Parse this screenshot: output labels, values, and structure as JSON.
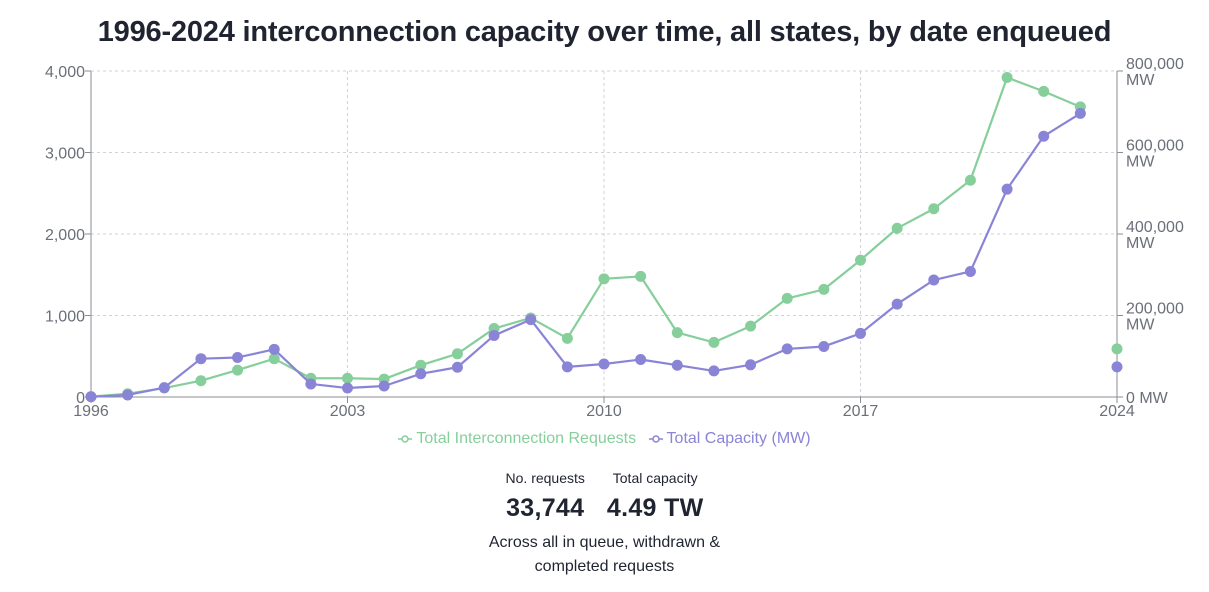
{
  "colors": {
    "requests": "#86cf9b",
    "capacity": "#8a84d6",
    "grid": "#cfd2d8",
    "axis": "#8a8d94",
    "text": "#1f2430"
  },
  "chart_data": {
    "type": "line",
    "title": "1996-2024 interconnection capacity over time, all states, by date enqueued",
    "x": [
      1996,
      1997,
      1998,
      1999,
      2000,
      2001,
      2002,
      2003,
      2004,
      2005,
      2006,
      2007,
      2008,
      2009,
      2010,
      2011,
      2012,
      2013,
      2014,
      2015,
      2016,
      2017,
      2018,
      2019,
      2020,
      2021,
      2022,
      2023,
      2024
    ],
    "xlim": [
      1996,
      2024
    ],
    "x_ticks": [
      "1996",
      "2003",
      "2010",
      "2017",
      "2024"
    ],
    "grid": true,
    "legend_position": "bottom-center",
    "series": [
      {
        "name": "Total Interconnection Requests",
        "axis": "left",
        "values": [
          5,
          40,
          110,
          200,
          330,
          470,
          230,
          230,
          220,
          390,
          530,
          840,
          970,
          720,
          1450,
          1480,
          790,
          670,
          870,
          1210,
          1320,
          1680,
          2070,
          2310,
          2660,
          3920,
          3750,
          3560,
          590
        ]
      },
      {
        "name": "Total Capacity (MW)",
        "axis": "right",
        "values": [
          500,
          5000,
          23000,
          94000,
          97000,
          117000,
          32000,
          22000,
          27000,
          57000,
          73000,
          151000,
          190000,
          74000,
          81000,
          92000,
          78000,
          64000,
          79000,
          118000,
          124000,
          156000,
          228000,
          287000,
          308000,
          510000,
          640000,
          696000,
          74000
        ]
      }
    ],
    "y_left": {
      "ylim": [
        0,
        4000
      ],
      "ticks": [
        "0",
        "1,000",
        "2,000",
        "3,000",
        "4,000"
      ]
    },
    "y_right": {
      "ylim": [
        0,
        800000
      ],
      "ticks": [
        [
          "0 MW"
        ],
        [
          "200,000",
          "MW"
        ],
        [
          "400,000",
          "MW"
        ],
        [
          "600,000",
          "MW"
        ],
        [
          "800,000",
          "MW"
        ]
      ]
    }
  },
  "legend": {
    "requests_label": "Total Interconnection Requests",
    "capacity_label": "Total Capacity (MW)"
  },
  "summary": {
    "requests_label": "No. requests",
    "requests_value": "33,744",
    "capacity_label": "Total capacity",
    "capacity_value": "4.49 TW",
    "caption": "Across all in queue, withdrawn & completed requests"
  }
}
